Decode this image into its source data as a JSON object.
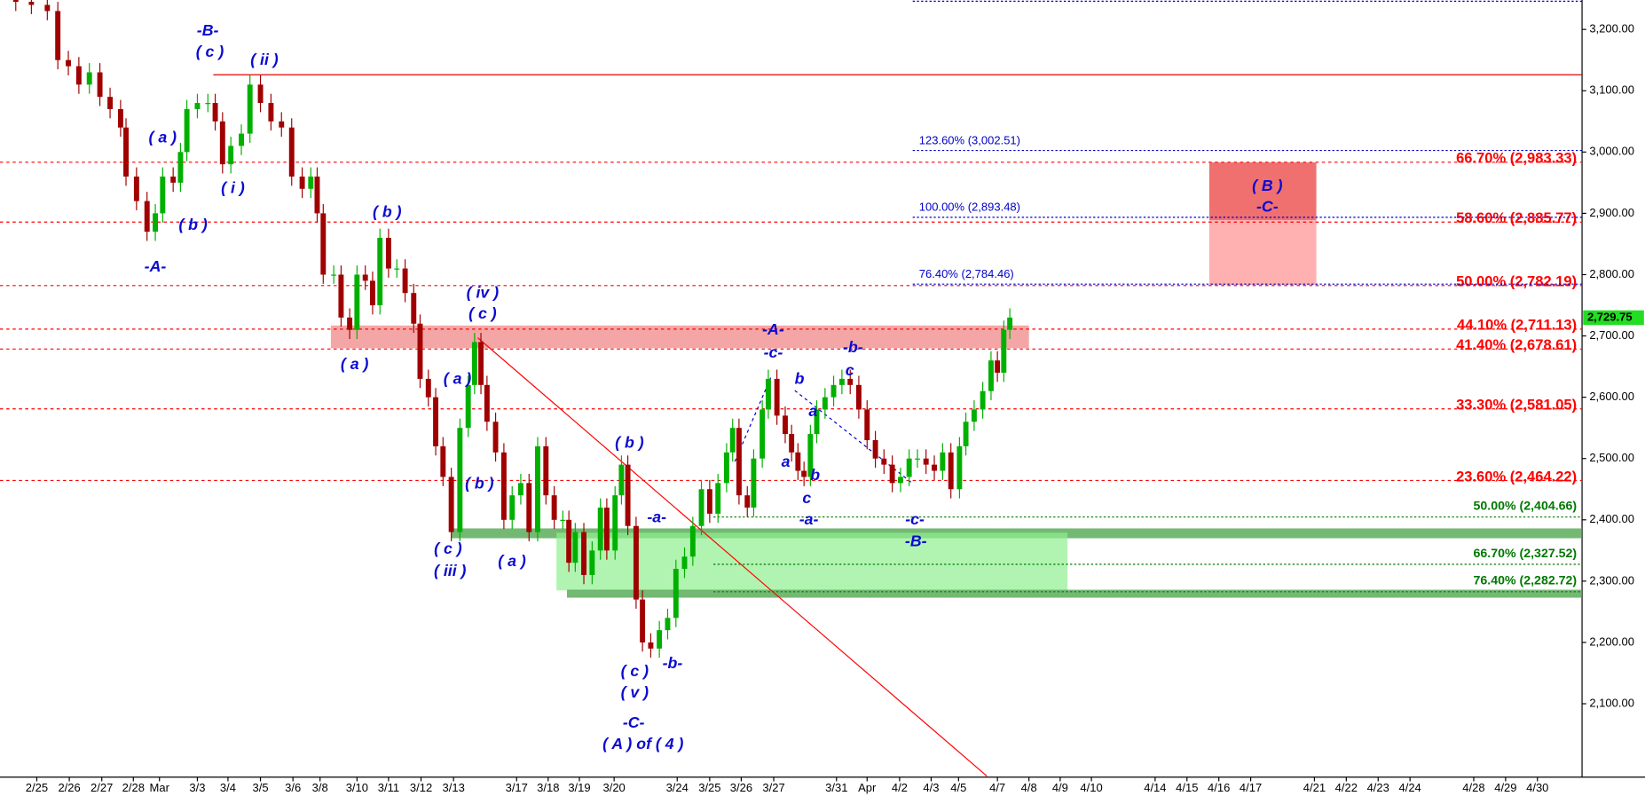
{
  "chart_data": {
    "type": "candlestick",
    "xlim": [
      -0.155,
      49.5
    ],
    "ylim": [
      1982,
      3248
    ],
    "xticks": [
      {
        "value": 1.0,
        "label": "2/25"
      },
      {
        "value": 2.02,
        "label": "2/26"
      },
      {
        "value": 3.04,
        "label": "2/27"
      },
      {
        "value": 4.03,
        "label": "2/28"
      },
      {
        "value": 4.85,
        "label": "Mar"
      },
      {
        "value": 6.04,
        "label": "3/3"
      },
      {
        "value": 7.0,
        "label": "3/4"
      },
      {
        "value": 8.02,
        "label": "3/5"
      },
      {
        "value": 9.04,
        "label": "3/6"
      },
      {
        "value": 9.89,
        "label": "3/8"
      },
      {
        "value": 11.05,
        "label": "3/10"
      },
      {
        "value": 12.04,
        "label": "3/11"
      },
      {
        "value": 13.06,
        "label": "3/12"
      },
      {
        "value": 14.08,
        "label": "3/13"
      },
      {
        "value": 16.06,
        "label": "3/17"
      },
      {
        "value": 17.05,
        "label": "3/18"
      },
      {
        "value": 18.03,
        "label": "3/19"
      },
      {
        "value": 19.12,
        "label": "3/20"
      },
      {
        "value": 21.1,
        "label": "3/24"
      },
      {
        "value": 22.12,
        "label": "3/25"
      },
      {
        "value": 23.11,
        "label": "3/26"
      },
      {
        "value": 24.13,
        "label": "3/27"
      },
      {
        "value": 26.1,
        "label": "3/31"
      },
      {
        "value": 27.06,
        "label": "Apr"
      },
      {
        "value": 28.08,
        "label": "4/2"
      },
      {
        "value": 29.07,
        "label": "4/3"
      },
      {
        "value": 29.93,
        "label": "4/5"
      },
      {
        "value": 31.15,
        "label": "4/7"
      },
      {
        "value": 32.14,
        "label": "4/8"
      },
      {
        "value": 33.12,
        "label": "4/9"
      },
      {
        "value": 34.1,
        "label": "4/10"
      },
      {
        "value": 36.1,
        "label": "4/14"
      },
      {
        "value": 37.1,
        "label": "4/15"
      },
      {
        "value": 38.1,
        "label": "4/16"
      },
      {
        "value": 39.1,
        "label": "4/17"
      },
      {
        "value": 41.1,
        "label": "4/21"
      },
      {
        "value": 42.1,
        "label": "4/22"
      },
      {
        "value": 43.1,
        "label": "4/23"
      },
      {
        "value": 44.1,
        "label": "4/24"
      },
      {
        "value": 46.1,
        "label": "4/28"
      },
      {
        "value": 47.1,
        "label": "4/29"
      },
      {
        "value": 48.1,
        "label": "4/30"
      }
    ],
    "yticks": [
      {
        "value": 2100,
        "label": "2,100.00"
      },
      {
        "value": 2200,
        "label": "2,200.00"
      },
      {
        "value": 2300,
        "label": "2,300.00"
      },
      {
        "value": 2400,
        "label": "2,400.00"
      },
      {
        "value": 2500,
        "label": "2,500.00"
      },
      {
        "value": 2600,
        "label": "2,600.00"
      },
      {
        "value": 2700,
        "label": "2,700.00"
      },
      {
        "value": 2800,
        "label": "2,800.00"
      },
      {
        "value": 2900,
        "label": "2,900.00"
      },
      {
        "value": 3000,
        "label": "3,000.00"
      },
      {
        "value": 3100,
        "label": "3,100.00"
      },
      {
        "value": 3200,
        "label": "3,200.00"
      }
    ],
    "up_color": "#00b000",
    "down_color": "#a00000",
    "x": [
      0.34,
      0.83,
      1.33,
      1.66,
      1.99,
      2.32,
      2.65,
      2.98,
      3.3,
      3.63,
      3.8,
      4.13,
      4.46,
      4.72,
      4.95,
      5.28,
      5.51,
      5.71,
      6.04,
      6.37,
      6.6,
      6.83,
      7.09,
      7.42,
      7.69,
      8.02,
      8.35,
      8.68,
      9.0,
      9.33,
      9.6,
      9.8,
      9.99,
      10.32,
      10.55,
      10.82,
      11.05,
      11.31,
      11.54,
      11.77,
      12.04,
      12.3,
      12.56,
      12.83,
      13.03,
      13.29,
      13.52,
      13.75,
      14.01,
      14.28,
      14.54,
      14.74,
      14.94,
      15.13,
      15.4,
      15.66,
      15.92,
      16.19,
      16.45,
      16.72,
      16.98,
      17.24,
      17.51,
      17.7,
      17.9,
      18.17,
      18.43,
      18.69,
      18.89,
      19.15,
      19.35,
      19.55,
      19.81,
      20.01,
      20.27,
      20.54,
      20.8,
      21.06,
      21.33,
      21.59,
      21.86,
      22.12,
      22.38,
      22.65,
      22.84,
      23.04,
      23.3,
      23.5,
      23.77,
      23.96,
      24.23,
      24.49,
      24.69,
      24.89,
      25.08,
      25.28,
      25.48,
      25.74,
      26.01,
      26.27,
      26.53,
      26.8,
      27.06,
      27.32,
      27.59,
      27.85,
      28.11,
      28.38,
      28.64,
      28.91,
      29.17,
      29.43,
      29.69,
      29.96,
      30.16,
      30.42,
      30.69,
      30.95,
      31.15,
      31.35,
      31.54
    ],
    "open": [
      3250,
      3245,
      3240,
      3230,
      3150,
      3140,
      3110,
      3130,
      3090,
      3070,
      3040,
      2960,
      2920,
      2870,
      2900,
      2960,
      2950,
      3000,
      3070,
      3080,
      3080,
      3050,
      2980,
      3010,
      3030,
      3110,
      3080,
      3050,
      3040,
      2960,
      2940,
      2960,
      2900,
      2800,
      2800,
      2730,
      2710,
      2800,
      2790,
      2750,
      2860,
      2810,
      2810,
      2770,
      2720,
      2630,
      2600,
      2520,
      2470,
      2380,
      2550,
      2620,
      2690,
      2620,
      2560,
      2510,
      2400,
      2440,
      2460,
      2380,
      2520,
      2440,
      2400,
      2400,
      2330,
      2380,
      2310,
      2350,
      2420,
      2350,
      2440,
      2490,
      2390,
      2270,
      2200,
      2190,
      2220,
      2240,
      2320,
      2340,
      2390,
      2450,
      2410,
      2460,
      2510,
      2550,
      2440,
      2420,
      2500,
      2580,
      2630,
      2570,
      2540,
      2510,
      2480,
      2470,
      2540,
      2580,
      2600,
      2620,
      2630,
      2620,
      2580,
      2530,
      2500,
      2490,
      2460,
      2470,
      2500,
      2500,
      2490,
      2480,
      2510,
      2450,
      2520,
      2560,
      2580,
      2610,
      2660,
      2640,
      2710
    ],
    "high": [
      3265,
      3260,
      3255,
      3245,
      3165,
      3155,
      3145,
      3145,
      3105,
      3085,
      3055,
      2975,
      2935,
      2915,
      2975,
      2975,
      3015,
      3085,
      3095,
      3095,
      3095,
      3065,
      3025,
      3045,
      3125,
      3125,
      3095,
      3065,
      3055,
      2975,
      2975,
      2975,
      2915,
      2815,
      2815,
      2745,
      2815,
      2815,
      2805,
      2875,
      2875,
      2825,
      2825,
      2785,
      2735,
      2645,
      2615,
      2535,
      2485,
      2565,
      2635,
      2705,
      2705,
      2635,
      2575,
      2525,
      2455,
      2475,
      2475,
      2535,
      2535,
      2455,
      2415,
      2415,
      2395,
      2395,
      2365,
      2435,
      2435,
      2455,
      2505,
      2505,
      2405,
      2285,
      2215,
      2235,
      2255,
      2335,
      2355,
      2405,
      2465,
      2465,
      2475,
      2525,
      2565,
      2565,
      2455,
      2515,
      2595,
      2645,
      2645,
      2585,
      2555,
      2525,
      2495,
      2555,
      2595,
      2615,
      2635,
      2645,
      2645,
      2635,
      2595,
      2545,
      2515,
      2505,
      2485,
      2515,
      2515,
      2515,
      2505,
      2525,
      2525,
      2535,
      2575,
      2595,
      2625,
      2675,
      2675,
      2725,
      2745
    ],
    "low": [
      3230,
      3225,
      3215,
      3135,
      3125,
      3095,
      3095,
      3075,
      3055,
      3025,
      2945,
      2905,
      2855,
      2855,
      2885,
      2935,
      2935,
      2985,
      3055,
      3065,
      3035,
      2965,
      2965,
      2995,
      3015,
      3065,
      3035,
      3025,
      2945,
      2925,
      2925,
      2885,
      2785,
      2785,
      2715,
      2695,
      2695,
      2775,
      2735,
      2735,
      2795,
      2795,
      2755,
      2705,
      2615,
      2585,
      2505,
      2455,
      2365,
      2365,
      2535,
      2605,
      2605,
      2545,
      2495,
      2385,
      2385,
      2425,
      2365,
      2365,
      2425,
      2385,
      2385,
      2315,
      2315,
      2295,
      2295,
      2335,
      2335,
      2335,
      2425,
      2375,
      2255,
      2185,
      2175,
      2175,
      2205,
      2225,
      2305,
      2325,
      2375,
      2395,
      2395,
      2445,
      2495,
      2425,
      2405,
      2405,
      2485,
      2565,
      2555,
      2525,
      2495,
      2465,
      2455,
      2455,
      2525,
      2565,
      2585,
      2605,
      2605,
      2565,
      2515,
      2485,
      2475,
      2445,
      2445,
      2455,
      2485,
      2475,
      2465,
      2465,
      2435,
      2435,
      2505,
      2545,
      2565,
      2595,
      2625,
      2625,
      2695
    ],
    "close": [
      3245,
      3240,
      3230,
      3150,
      3140,
      3110,
      3130,
      3090,
      3070,
      3040,
      2960,
      2920,
      2870,
      2900,
      2960,
      2950,
      3000,
      3070,
      3080,
      3080,
      3050,
      2980,
      3010,
      3030,
      3110,
      3080,
      3050,
      3040,
      2960,
      2940,
      2960,
      2900,
      2800,
      2800,
      2730,
      2710,
      2800,
      2790,
      2750,
      2860,
      2810,
      2810,
      2770,
      2720,
      2630,
      2600,
      2520,
      2470,
      2380,
      2550,
      2620,
      2690,
      2620,
      2560,
      2510,
      2400,
      2440,
      2460,
      2380,
      2520,
      2440,
      2400,
      2400,
      2330,
      2380,
      2310,
      2350,
      2420,
      2350,
      2440,
      2490,
      2390,
      2270,
      2200,
      2190,
      2220,
      2240,
      2320,
      2340,
      2390,
      2450,
      2410,
      2460,
      2510,
      2550,
      2440,
      2420,
      2500,
      2580,
      2630,
      2570,
      2540,
      2510,
      2480,
      2470,
      2540,
      2580,
      2600,
      2620,
      2630,
      2620,
      2580,
      2530,
      2500,
      2490,
      2460,
      2470,
      2500,
      2500,
      2490,
      2480,
      2510,
      2450,
      2520,
      2560,
      2580,
      2610,
      2660,
      2640,
      2710,
      2730
    ],
    "fib_levels": [
      {
        "color": "#ff0000",
        "levels": [
          {
            "label": "66.70% (2,983.33)",
            "value": 2983.33
          },
          {
            "label": "58.60% (2,885.77)",
            "value": 2885.77
          },
          {
            "label": "50.00% (2,782.19)",
            "value": 2782.19
          },
          {
            "label": "44.10% (2,711.13)",
            "value": 2711.13
          },
          {
            "label": "41.40% (2,678.61)",
            "value": 2678.61
          },
          {
            "label": "33.30% (2,581.05)",
            "value": 2581.05
          },
          {
            "label": "23.60% (2,464.22)",
            "value": 2464.22
          }
        ]
      },
      {
        "color": "#0000c8",
        "levels": [
          {
            "label": "123.60% (3,002.51)",
            "value": 3002.51
          },
          {
            "label": "100.00% (2,893.48)",
            "value": 2893.48
          },
          {
            "label": "76.40% (2,784.46)",
            "value": 2784.46
          }
        ]
      },
      {
        "color": "#007800",
        "levels": [
          {
            "label": "50.00% (2,404.66)",
            "value": 2404.66
          },
          {
            "label": "66.70% (2,327.52)",
            "value": 2327.52
          },
          {
            "label": "76.40% (2,282.72)",
            "value": 2282.72
          }
        ]
      }
    ],
    "top_level": {
      "value": 3246,
      "color": "#0000c8"
    },
    "resistance": {
      "value": 3126,
      "from_x": 6.54,
      "color": "#e00000"
    },
    "zones": [
      {
        "color": "#f08080",
        "opacity": 0.7,
        "x": [
          10.23,
          32.14
        ],
        "y": [
          2680,
          2717
        ]
      },
      {
        "color": "#44a044",
        "opacity": 0.75,
        "x": [
          14.01,
          49.5
        ],
        "y": [
          2370,
          2386
        ]
      },
      {
        "color": "#90f090",
        "opacity": 0.7,
        "x": [
          17.31,
          33.35
        ],
        "y": [
          2285,
          2379
        ]
      },
      {
        "color": "#44a044",
        "opacity": 0.75,
        "x": [
          17.64,
          49.5
        ],
        "y": [
          2273,
          2286
        ]
      },
      {
        "color": "#f07070",
        "opacity": 1,
        "x": [
          37.8,
          41.16
        ],
        "y": [
          2889,
          2983
        ]
      },
      {
        "color": "#ffb0b0",
        "opacity": 1,
        "x": [
          37.8,
          41.16
        ],
        "y": [
          2783,
          2889
        ]
      }
    ],
    "trend_lines": [
      {
        "color": "#ff0000",
        "dashed": false,
        "x": [
          14.84,
          30.82
        ],
        "y": [
          2697,
          1982
        ]
      },
      {
        "color": "#0000c8",
        "dashed": true,
        "x": [
          22.91,
          24.06
        ],
        "y": [
          2495,
          2635
        ]
      },
      {
        "color": "#0000c8",
        "dashed": true,
        "x": [
          24.79,
          28.45
        ],
        "y": [
          2611,
          2461
        ]
      }
    ],
    "annotation_color": "#0a0ad0",
    "annotations": [
      "-B-",
      "( c )",
      "( ii )",
      "( a )",
      "( i )",
      "( b )",
      "-A-",
      "( b )",
      "( iv )",
      "( c )",
      "( a )",
      "( a )",
      "( b )",
      "( c )",
      "( iii )",
      "( a )",
      "( b )",
      "-a-",
      "( c )",
      "( v )",
      "-b-",
      "-C-",
      "( A ) of ( 4 )",
      "-A-",
      "-c-",
      "-b-",
      "c",
      "b",
      "a",
      "a",
      "b",
      "c",
      "-a-",
      "-c-",
      "-B-",
      "( B )",
      "-C-"
    ],
    "last_price": {
      "value": 2729.75,
      "label": "2,729.75",
      "color": "#22dd22"
    }
  }
}
